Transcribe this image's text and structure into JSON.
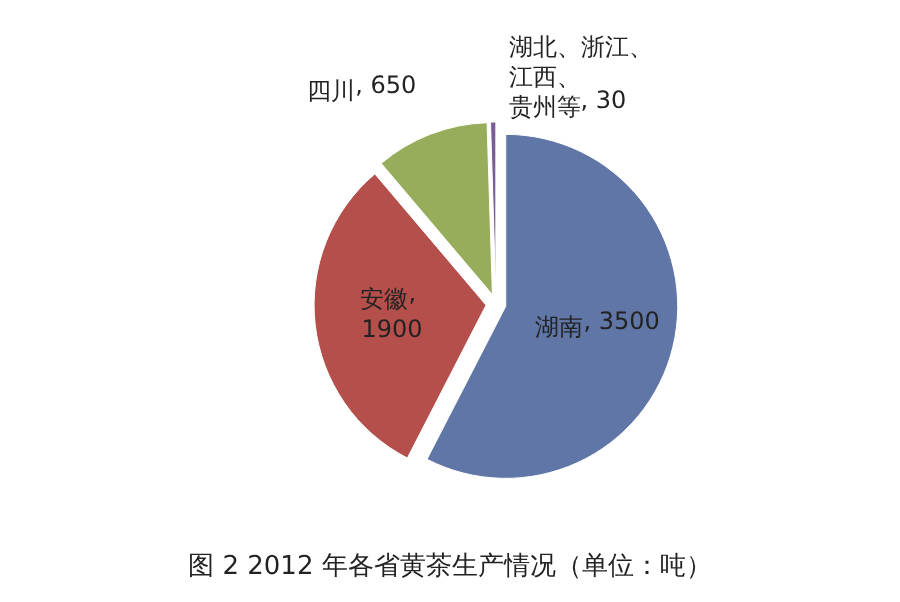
{
  "chart_data": {
    "type": "pie",
    "title": "图 2   2012 年各省黄茶生产情况（单位：吨）",
    "categories": [
      "湖南",
      "安徽",
      "四川",
      "湖北、浙江、江西、贵州等"
    ],
    "values": [
      3500,
      1900,
      650,
      30
    ],
    "colors": [
      "#5f76a6",
      "#b44f4c",
      "#97ad5c",
      "#7a5d95"
    ],
    "value_labels": [
      ", 3500",
      ", 1900",
      ", 650",
      ", 30"
    ]
  }
}
